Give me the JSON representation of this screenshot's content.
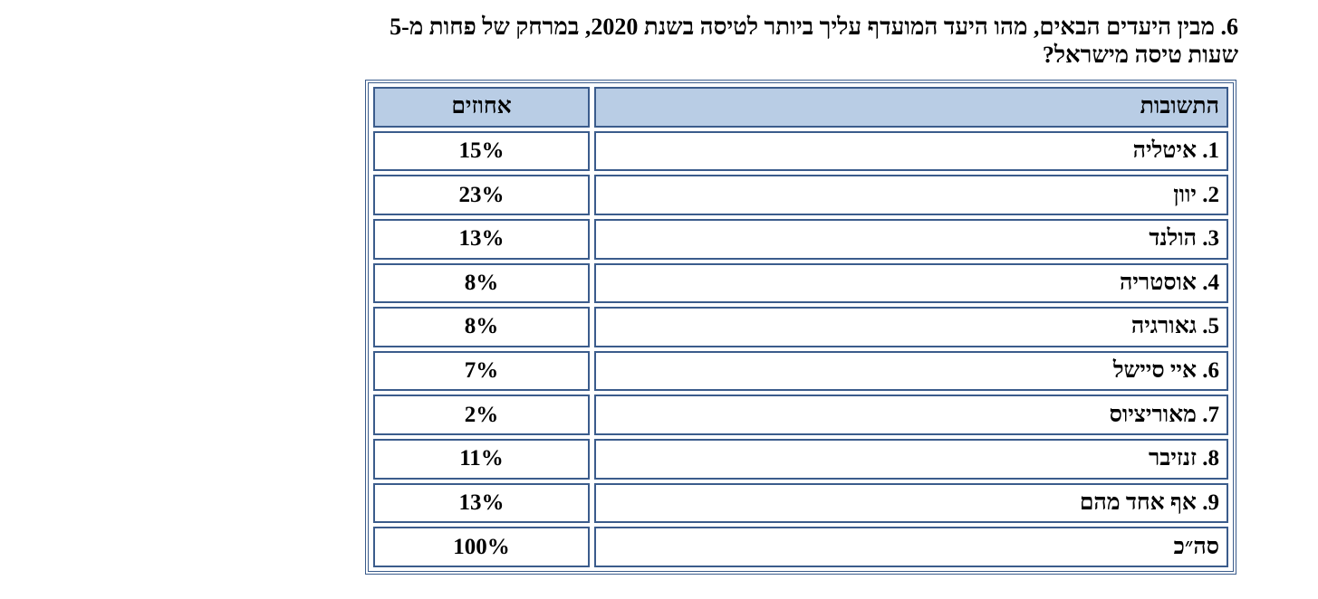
{
  "question": [
    "6. מבין היעדים הבאים, מהו היעד המועדף עליך ביותר לטיסה בשנת 2020, במרחק של פחות מ-5",
    "שעות טיסה מישראל?"
  ],
  "table": {
    "header": [
      "התשובות",
      "אחוזים"
    ],
    "rows": [
      [
        "1. איטליה",
        "15%"
      ],
      [
        "2. יוון",
        "23%"
      ],
      [
        "3. הולנד",
        "13%"
      ],
      [
        "4. אוסטריה",
        "8%"
      ],
      [
        "5. גאורגיה",
        "8%"
      ],
      [
        "6. איי סיישל",
        "7%"
      ],
      [
        "7. מאוריציוס",
        "2%"
      ],
      [
        "8. זנזיבר",
        "11%"
      ],
      [
        "9. אף אחד מהם",
        "13%"
      ],
      [
        "סה״כ",
        "100%"
      ]
    ]
  }
}
